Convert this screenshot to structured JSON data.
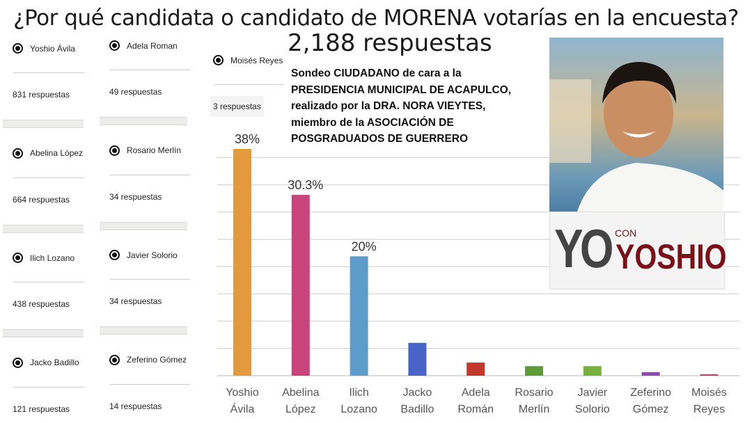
{
  "title": "¿Por qué candidata o candidato de MORENA votarías en la encuesta?",
  "total": "2,188 respuestas",
  "description": [
    "Sondeo CIUDADANO de cara a la",
    "PRESIDENCIA MUNICIPAL DE ACAPULCO,",
    "realizado por la DRA. NORA VIEYTES,",
    "miembro de la ASOCIACIÓN DE",
    "POSGRADUADOS DE GUERRERO"
  ],
  "options": [
    {
      "name": "Yoshio Ávila",
      "count": "831 respuestas"
    },
    {
      "name": "Abelina López",
      "count": "664 respuestas"
    },
    {
      "name": "Ilich Lozano",
      "count": "438 respuestas"
    },
    {
      "name": "Jacko Badillo",
      "count": "121 respuestas"
    },
    {
      "name": "Adela Roman",
      "count": "49 respuestas"
    },
    {
      "name": "Rosario Merlín",
      "count": "34 respuestas"
    },
    {
      "name": "Javier Solorio",
      "count": "34 respuestas"
    },
    {
      "name": "Zeferino Gómez",
      "count": "14 respuestas"
    },
    {
      "name": "Moisés Reyes",
      "count": "3 respuestas"
    }
  ],
  "logo": {
    "yo": "YO",
    "con": "CON",
    "yoshio": "YOSHIO"
  },
  "chart_data": {
    "type": "bar",
    "categories": [
      [
        "Yoshio",
        "Ávila"
      ],
      [
        "Abelina",
        "López"
      ],
      [
        "Ilich",
        "Lozano"
      ],
      [
        "Jacko",
        "Badillo"
      ],
      [
        "Adela",
        "Román"
      ],
      [
        "Rosario",
        "Merlín"
      ],
      [
        "Javier",
        "Solorio"
      ],
      [
        "Zeferino",
        "Gómez"
      ],
      [
        "Moisés",
        "Reyes"
      ]
    ],
    "values": [
      38,
      30.3,
      20,
      5.5,
      2.2,
      1.6,
      1.6,
      0.6,
      0.1
    ],
    "data_labels": [
      "38%",
      "30.3%",
      "20%",
      "",
      "",
      "",
      "",
      "",
      ""
    ],
    "colors": [
      "#e39a3c",
      "#c9447a",
      "#5e9ccb",
      "#4a63c6",
      "#c0392b",
      "#5d9a3a",
      "#78b23e",
      "#8a4bb3",
      "#b2466e"
    ],
    "ylim": [
      0,
      40.5
    ],
    "grid": true,
    "xlabel": "",
    "ylabel": ""
  }
}
